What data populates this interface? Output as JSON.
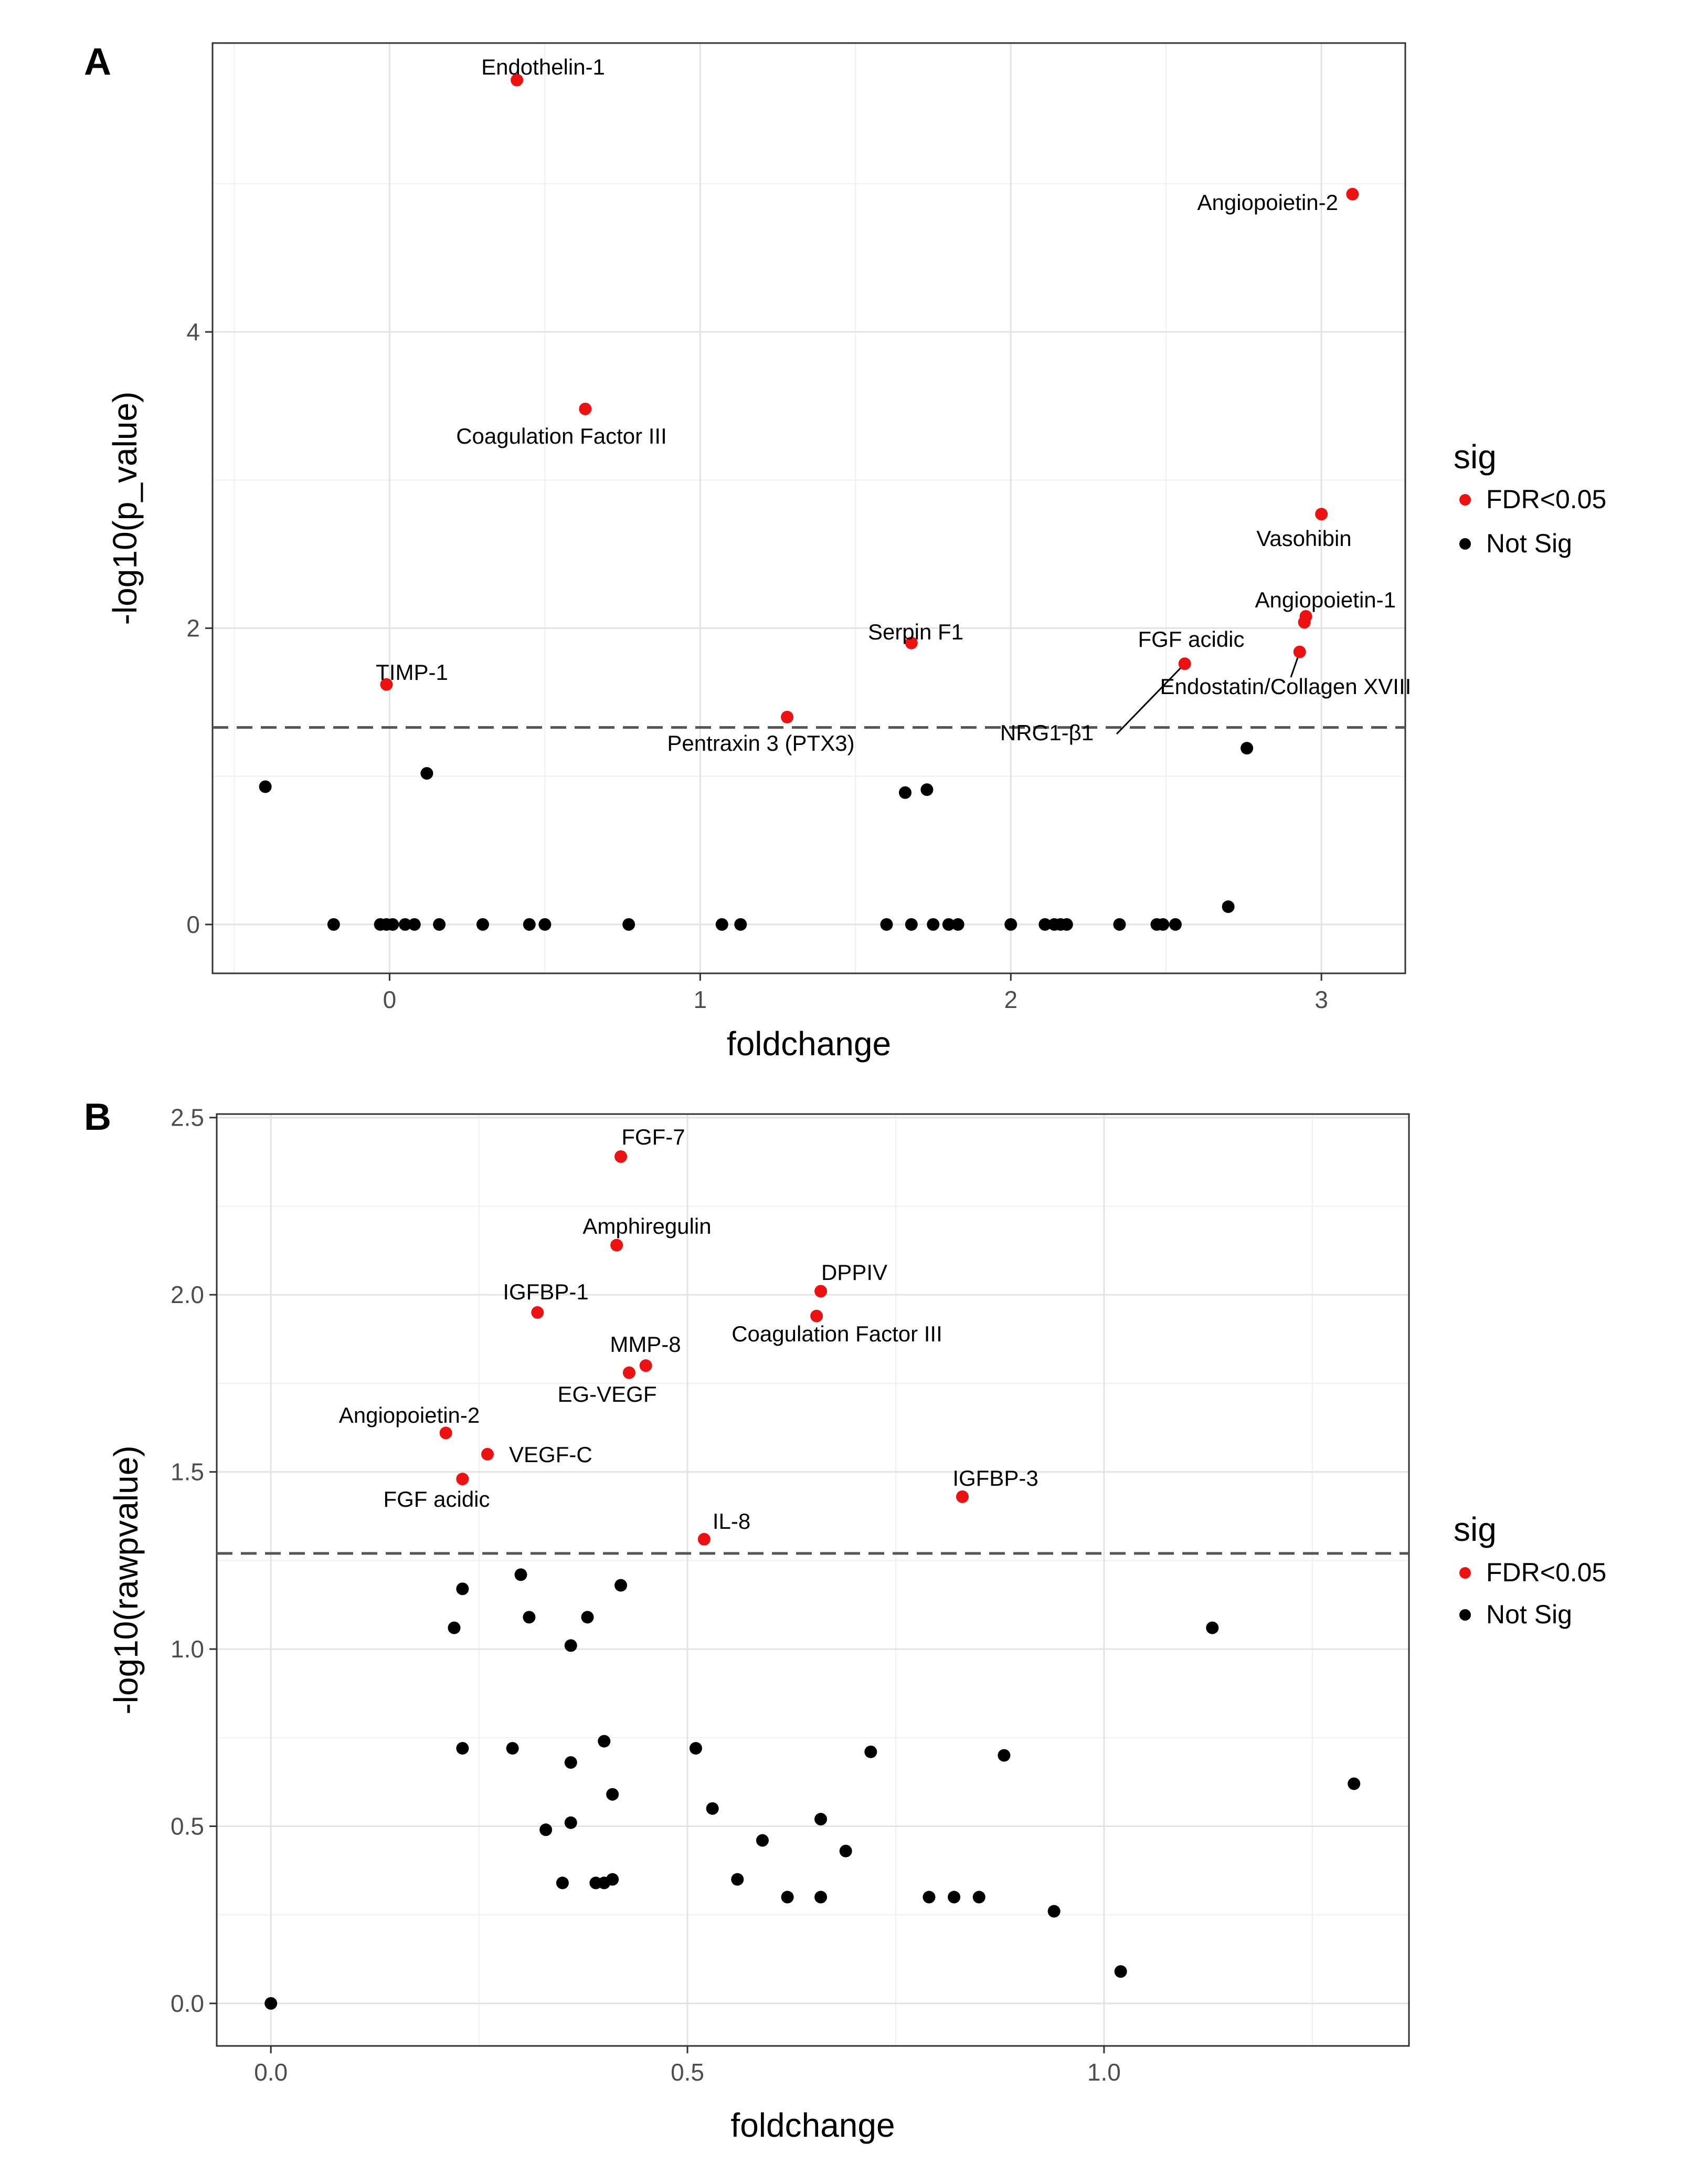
{
  "chart_data": [
    {
      "panel": "A",
      "type": "scatter",
      "xlabel": "foldchange",
      "ylabel": "-log10(p_value)",
      "xlim": [
        -0.57,
        3.27
      ],
      "ylim": [
        -0.33,
        5.95
      ],
      "xticks": [
        0,
        1,
        2,
        3
      ],
      "yticks": [
        0,
        2,
        4
      ],
      "threshold": 1.33,
      "legend": {
        "title": "sig",
        "entries": [
          {
            "label": "FDR<0.05",
            "color": "#ee1111"
          },
          {
            "label": "Not Sig",
            "color": "#000000"
          }
        ]
      },
      "points": [
        {
          "x": 0.41,
          "y": 5.7,
          "sig": true,
          "label": "Endothelin-1"
        },
        {
          "x": 3.1,
          "y": 4.93,
          "sig": true,
          "label": "Angiopoietin-2"
        },
        {
          "x": 0.63,
          "y": 3.48,
          "sig": true,
          "label": "Coagulation Factor III"
        },
        {
          "x": 3.0,
          "y": 2.77,
          "sig": true,
          "label": "Vasohibin"
        },
        {
          "x": 2.95,
          "y": 2.08,
          "sig": true,
          "label": "Angiopoietin-1"
        },
        {
          "x": 2.945,
          "y": 2.04,
          "sig": true,
          "label": ""
        },
        {
          "x": 2.93,
          "y": 1.84,
          "sig": true,
          "label": "Endostatin/Collagen XVIII"
        },
        {
          "x": 2.56,
          "y": 1.76,
          "sig": true,
          "label": "NRG1-β1"
        },
        {
          "x": 1.68,
          "y": 1.9,
          "sig": true,
          "label": "Serpin F1"
        },
        {
          "x": -0.01,
          "y": 1.62,
          "sig": true,
          "label": "TIMP-1"
        },
        {
          "x": 1.28,
          "y": 1.4,
          "sig": true,
          "label": "Pentraxin 3 (PTX3)"
        },
        {
          "x": 2.76,
          "y": 1.19,
          "sig": false
        },
        {
          "x": 0.12,
          "y": 1.02,
          "sig": false
        },
        {
          "x": -0.4,
          "y": 0.93,
          "sig": false
        },
        {
          "x": 1.66,
          "y": 0.89,
          "sig": false
        },
        {
          "x": 1.73,
          "y": 0.91,
          "sig": false
        },
        {
          "x": 2.7,
          "y": 0.12,
          "sig": false
        },
        {
          "x": -0.18,
          "y": 0,
          "sig": false
        },
        {
          "x": -0.03,
          "y": 0,
          "sig": false
        },
        {
          "x": -0.01,
          "y": 0,
          "sig": false
        },
        {
          "x": 0.01,
          "y": 0,
          "sig": false
        },
        {
          "x": 0.05,
          "y": 0,
          "sig": false
        },
        {
          "x": 0.08,
          "y": 0,
          "sig": false
        },
        {
          "x": 0.16,
          "y": 0,
          "sig": false
        },
        {
          "x": 0.3,
          "y": 0,
          "sig": false
        },
        {
          "x": 0.45,
          "y": 0,
          "sig": false
        },
        {
          "x": 0.5,
          "y": 0,
          "sig": false
        },
        {
          "x": 0.77,
          "y": 0,
          "sig": false
        },
        {
          "x": 1.07,
          "y": 0,
          "sig": false
        },
        {
          "x": 1.13,
          "y": 0,
          "sig": false
        },
        {
          "x": 1.6,
          "y": 0,
          "sig": false
        },
        {
          "x": 1.68,
          "y": 0,
          "sig": false
        },
        {
          "x": 1.75,
          "y": 0,
          "sig": false
        },
        {
          "x": 1.8,
          "y": 0,
          "sig": false
        },
        {
          "x": 1.83,
          "y": 0,
          "sig": false
        },
        {
          "x": 2.0,
          "y": 0,
          "sig": false
        },
        {
          "x": 2.11,
          "y": 0,
          "sig": false
        },
        {
          "x": 2.14,
          "y": 0,
          "sig": false
        },
        {
          "x": 2.16,
          "y": 0,
          "sig": false
        },
        {
          "x": 2.18,
          "y": 0,
          "sig": false
        },
        {
          "x": 2.35,
          "y": 0,
          "sig": false
        },
        {
          "x": 2.47,
          "y": 0,
          "sig": false
        },
        {
          "x": 2.49,
          "y": 0,
          "sig": false
        },
        {
          "x": 2.53,
          "y": 0,
          "sig": false
        }
      ]
    },
    {
      "panel": "B",
      "type": "scatter",
      "xlabel": "foldchange",
      "ylabel": "-log10(rawpvalue)",
      "xlim": [
        -0.065,
        1.366
      ],
      "ylim": [
        -0.12,
        2.51
      ],
      "xticks": [
        0.0,
        0.5,
        1.0
      ],
      "yticks": [
        0.0,
        0.5,
        1.0,
        1.5,
        2.0,
        2.5
      ],
      "threshold": 1.27,
      "legend": {
        "title": "sig",
        "entries": [
          {
            "label": "FDR<0.05",
            "color": "#ee1111"
          },
          {
            "label": "Not Sig",
            "color": "#000000"
          }
        ]
      },
      "points": [
        {
          "x": 0.42,
          "y": 2.39,
          "sig": true,
          "label": "FGF-7"
        },
        {
          "x": 0.415,
          "y": 2.14,
          "sig": true,
          "label": "Amphiregulin"
        },
        {
          "x": 0.66,
          "y": 2.01,
          "sig": true,
          "label": "DPPIV"
        },
        {
          "x": 0.32,
          "y": 1.95,
          "sig": true,
          "label": "IGFBP-1"
        },
        {
          "x": 0.655,
          "y": 1.94,
          "sig": true,
          "label": "Coagulation Factor III"
        },
        {
          "x": 0.45,
          "y": 1.8,
          "sig": true,
          "label": "MMP-8"
        },
        {
          "x": 0.43,
          "y": 1.78,
          "sig": true,
          "label": "EG-VEGF"
        },
        {
          "x": 0.21,
          "y": 1.61,
          "sig": true,
          "label": "Angiopoietin-2"
        },
        {
          "x": 0.26,
          "y": 1.55,
          "sig": true,
          "label": "VEGF-C"
        },
        {
          "x": 0.23,
          "y": 1.48,
          "sig": true,
          "label": "FGF acidic"
        },
        {
          "x": 0.83,
          "y": 1.43,
          "sig": true,
          "label": "IGFBP-3"
        },
        {
          "x": 0.52,
          "y": 1.31,
          "sig": true,
          "label": "IL-8"
        },
        {
          "x": 0.3,
          "y": 1.21,
          "sig": false
        },
        {
          "x": 0.42,
          "y": 1.18,
          "sig": false
        },
        {
          "x": 0.23,
          "y": 1.17,
          "sig": false
        },
        {
          "x": 0.31,
          "y": 1.09,
          "sig": false
        },
        {
          "x": 0.38,
          "y": 1.09,
          "sig": false
        },
        {
          "x": 0.22,
          "y": 1.06,
          "sig": false
        },
        {
          "x": 1.13,
          "y": 1.06,
          "sig": false
        },
        {
          "x": 0.36,
          "y": 1.01,
          "sig": false
        },
        {
          "x": 0.4,
          "y": 0.74,
          "sig": false
        },
        {
          "x": 0.23,
          "y": 0.72,
          "sig": false
        },
        {
          "x": 0.29,
          "y": 0.72,
          "sig": false
        },
        {
          "x": 0.51,
          "y": 0.72,
          "sig": false
        },
        {
          "x": 0.72,
          "y": 0.71,
          "sig": false
        },
        {
          "x": 0.88,
          "y": 0.7,
          "sig": false
        },
        {
          "x": 0.36,
          "y": 0.68,
          "sig": false
        },
        {
          "x": 1.3,
          "y": 0.62,
          "sig": false
        },
        {
          "x": 0.41,
          "y": 0.59,
          "sig": false
        },
        {
          "x": 0.53,
          "y": 0.55,
          "sig": false
        },
        {
          "x": 0.66,
          "y": 0.52,
          "sig": false
        },
        {
          "x": 0.36,
          "y": 0.51,
          "sig": false
        },
        {
          "x": 0.33,
          "y": 0.49,
          "sig": false
        },
        {
          "x": 0.59,
          "y": 0.46,
          "sig": false
        },
        {
          "x": 0.69,
          "y": 0.43,
          "sig": false
        },
        {
          "x": 0.56,
          "y": 0.35,
          "sig": false
        },
        {
          "x": 0.35,
          "y": 0.34,
          "sig": false
        },
        {
          "x": 0.39,
          "y": 0.34,
          "sig": false
        },
        {
          "x": 0.4,
          "y": 0.34,
          "sig": false
        },
        {
          "x": 0.41,
          "y": 0.35,
          "sig": false
        },
        {
          "x": 0.62,
          "y": 0.3,
          "sig": false
        },
        {
          "x": 0.66,
          "y": 0.3,
          "sig": false
        },
        {
          "x": 0.79,
          "y": 0.3,
          "sig": false
        },
        {
          "x": 0.82,
          "y": 0.3,
          "sig": false
        },
        {
          "x": 0.85,
          "y": 0.3,
          "sig": false
        },
        {
          "x": 0.94,
          "y": 0.26,
          "sig": false
        },
        {
          "x": 1.02,
          "y": 0.09,
          "sig": false
        },
        {
          "x": 0.0,
          "y": 0.0,
          "sig": false
        }
      ]
    }
  ]
}
